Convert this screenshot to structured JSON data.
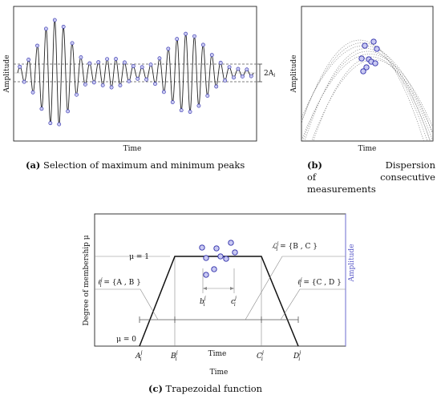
{
  "panel_a": {
    "xlabel": "Time",
    "ylabel": "Amplitude",
    "band_label": "2A",
    "band_label_sub": "i",
    "caption_tag": "(a)",
    "caption_text": "Selection of maximum and minimum peaks"
  },
  "panel_b": {
    "xlabel": "Time",
    "ylabel": "Amplitude",
    "caption_tag": "(b)",
    "caption_word1": "Dispersion",
    "caption_line2_left": "of",
    "caption_line2_right": "consecutive",
    "caption_line3": "measurements"
  },
  "panel_c": {
    "xlabel": "Time",
    "inner_xlabel": "Time",
    "ylabel": "Degree of membership μ",
    "right_label": "Amplitude",
    "mu1": "μ = 1",
    "mu0": "μ = 0",
    "point_A": "A",
    "point_B": "B",
    "point_C": "C",
    "point_D": "D",
    "sup": "j",
    "sub": "i",
    "b_label": "b",
    "c_label": "c",
    "L_label": "ℒ",
    "L_eq": " = {B , C }",
    "l_left": "ℓ",
    "l_left_eq": " = {A , B }",
    "l_right": "ℓ",
    "l_right_eq": " = {C , D }",
    "caption_tag": "(c)",
    "caption_text": "Trapezoidal function"
  },
  "colors": {
    "marker_fill": "#c9c9f2",
    "marker_stroke": "#2a2aa8",
    "amplitude_axis": "#6b6bcf",
    "signal": "#222222",
    "guide": "#888888"
  }
}
